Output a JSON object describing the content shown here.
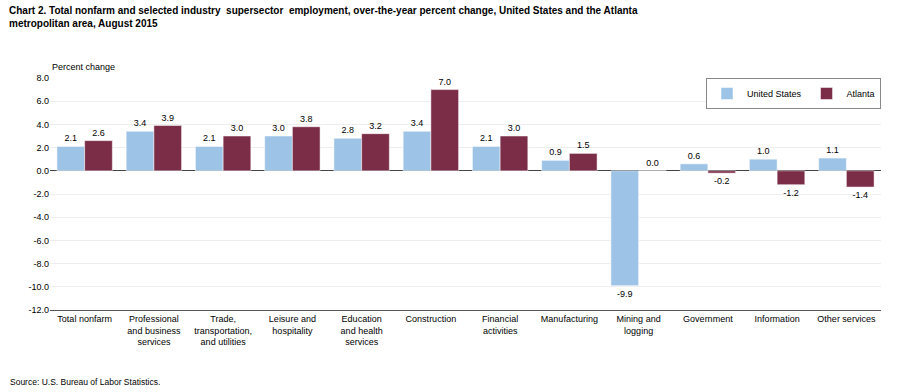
{
  "chart_data": {
    "type": "bar",
    "title": "Chart 2. Total nonfarm and selected industry  supersector  employment, over-the-year percent change, United States and the Atlanta\nmetropolitan area, August 2015",
    "ylabel": "Percent change",
    "source": "Source: U.S. Bureau of Labor Statistics.",
    "categories": [
      "Total nonfarm",
      "Professional\nand business\nservices",
      "Trade,\ntransportation,\nand utilities",
      "Leisure and\nhospitality",
      "Education\nand health\nservices",
      "Construction",
      "Financial\nactivities",
      "Manufacturing",
      "Mining and\nlogging",
      "Government",
      "Information",
      "Other services"
    ],
    "series": [
      {
        "name": "United States",
        "color": "#9DC3E6",
        "values": [
          2.1,
          3.4,
          2.1,
          3.0,
          2.8,
          3.4,
          2.1,
          0.9,
          -9.9,
          0.6,
          1.0,
          1.1
        ],
        "value_labels": [
          "2.1",
          "3.4",
          "2.1",
          "3.0",
          "2.8",
          "3.4",
          "2.1",
          "0.9",
          "-9.9",
          "0.6",
          "1.0",
          "1.1"
        ]
      },
      {
        "name": "Atlanta",
        "color": "#7B2C47",
        "values": [
          2.6,
          3.9,
          3.0,
          3.8,
          3.2,
          7.0,
          3.0,
          1.5,
          0.0,
          -0.2,
          -1.2,
          -1.4
        ],
        "value_labels": [
          "2.6",
          "3.9",
          "3.0",
          "3.8",
          "3.2",
          "7.0",
          "3.0",
          "1.5",
          "0.0",
          "-0.2",
          "-1.2",
          "-1.4"
        ]
      }
    ],
    "ylim": [
      -12.0,
      8.0
    ],
    "yticks": [
      {
        "value": -12.0,
        "label": "-12.0"
      },
      {
        "value": -10.0,
        "label": "-10.0"
      },
      {
        "value": -8.0,
        "label": "-8.0"
      },
      {
        "value": -6.0,
        "label": "-6.0"
      },
      {
        "value": -4.0,
        "label": "-4.0"
      },
      {
        "value": -2.0,
        "label": "-2.0"
      },
      {
        "value": 0.0,
        "label": "0.0"
      },
      {
        "value": 2.0,
        "label": "2.0"
      },
      {
        "value": 4.0,
        "label": "4.0"
      },
      {
        "value": 6.0,
        "label": "6.0"
      },
      {
        "value": 8.0,
        "label": "8.0"
      }
    ],
    "grid": true,
    "legend": "upper right",
    "data_labels": true
  }
}
